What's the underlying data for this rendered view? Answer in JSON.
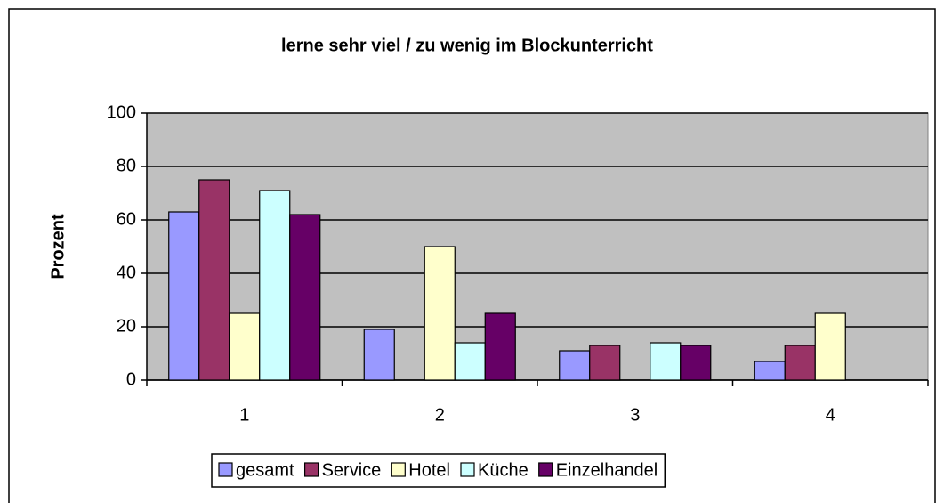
{
  "chart_data": {
    "type": "bar",
    "title": "lerne sehr viel / zu wenig im Blockunterricht",
    "y_label": "Prozent",
    "categories": [
      "1",
      "2",
      "3",
      "4"
    ],
    "series": [
      {
        "name": "gesamt",
        "color": "#9999ff",
        "values": [
          63,
          19,
          11,
          7
        ]
      },
      {
        "name": "Service",
        "color": "#993366",
        "values": [
          75,
          0,
          13,
          13
        ]
      },
      {
        "name": "Hotel",
        "color": "#ffffcc",
        "values": [
          25,
          50,
          0,
          25
        ]
      },
      {
        "name": "Küche",
        "color": "#ccffff",
        "values": [
          71,
          14,
          14,
          0
        ]
      },
      {
        "name": "Einzelhandel",
        "color": "#660066",
        "values": [
          62,
          25,
          13,
          0
        ]
      }
    ],
    "ylim": [
      0,
      100
    ],
    "yticks": [
      0,
      20,
      40,
      60,
      80,
      100
    ],
    "grid": true,
    "legend": "bottom"
  }
}
